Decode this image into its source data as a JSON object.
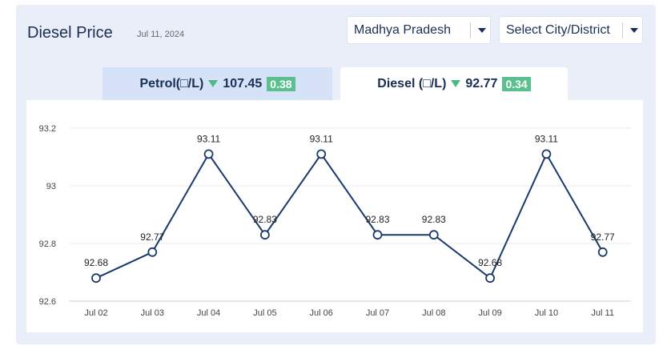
{
  "header": {
    "title": "Diesel Price",
    "date": "Jul 11, 2024"
  },
  "filters": {
    "state": "Madhya Pradesh",
    "city_placeholder": "Select City/District"
  },
  "tabs": [
    {
      "label": "Petrol(□/L)",
      "price": "107.45",
      "change": "0.38"
    },
    {
      "label": "Diesel (□/L)",
      "price": "92.77",
      "change": "0.34"
    }
  ],
  "chart_data": {
    "type": "line",
    "categories": [
      "Jul 02",
      "Jul 03",
      "Jul 04",
      "Jul 05",
      "Jul 06",
      "Jul 07",
      "Jul 08",
      "Jul 09",
      "Jul 10",
      "Jul 11"
    ],
    "values": [
      92.68,
      92.77,
      93.11,
      92.83,
      93.11,
      92.83,
      92.83,
      92.68,
      93.11,
      92.77
    ],
    "data_labels": [
      "92.68",
      "92.77",
      "93.11",
      "92.83",
      "93.11",
      "92.83",
      "92.83",
      "92.68",
      "93.11",
      "92.77"
    ],
    "yticks": [
      "92.6",
      "92.8",
      "93",
      "93.2"
    ],
    "ylim": [
      92.6,
      93.2
    ],
    "grid": "horizontal",
    "line_color": "#1a3a6b"
  }
}
